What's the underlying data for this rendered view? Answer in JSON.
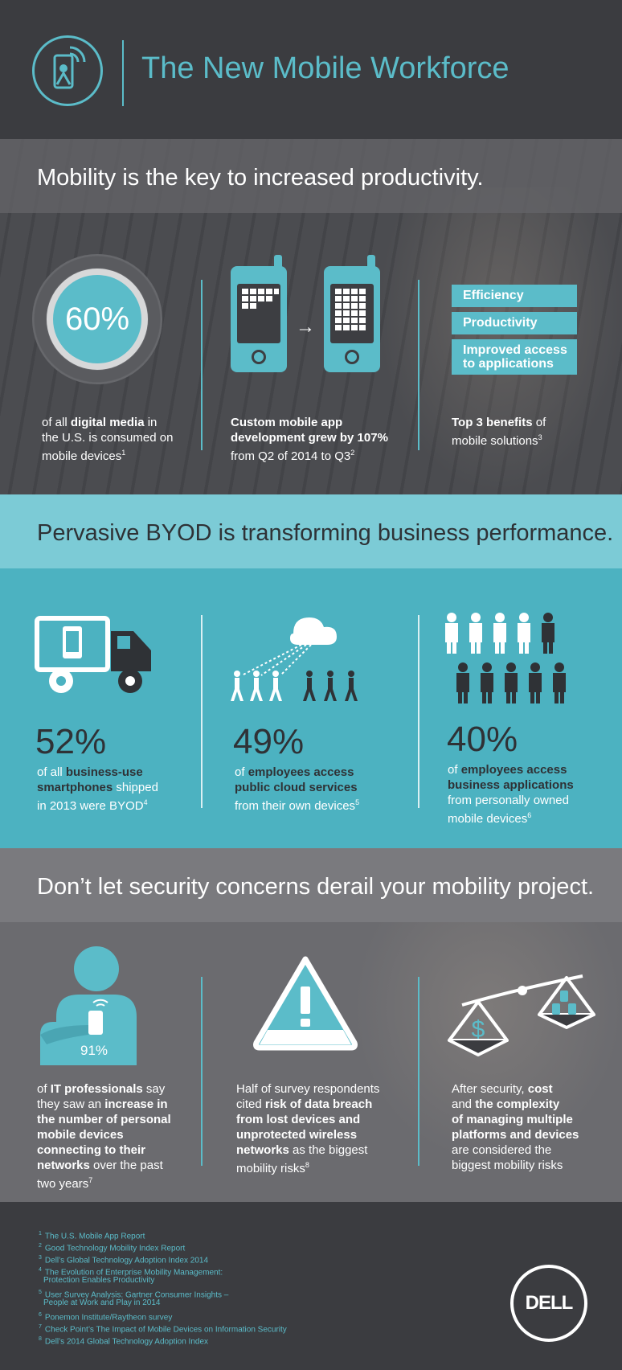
{
  "header": {
    "title": "The New Mobile Workforce"
  },
  "section1": {
    "title": "Mobility is the key to increased productivity.",
    "stat1": {
      "value": "60%",
      "pre": "of all ",
      "bold": "digital media",
      "post1": " in",
      "line2": "the U.S. is consumed on",
      "line3": "mobile devices",
      "sup": "1"
    },
    "stat2": {
      "bold1": "Custom mobile app",
      "bold2": "development grew by 107%",
      "line3": "from Q2 of 2014 to Q3",
      "sup": "2"
    },
    "stat3": {
      "benefits": [
        "Efficiency",
        "Productivity",
        "Improved access",
        "to applications"
      ],
      "bold": "Top 3 benefits",
      "post": " of",
      "line2": "mobile solutions",
      "sup": "3"
    }
  },
  "section2": {
    "title": "Pervasive BYOD is transforming business performance.",
    "stat1": {
      "value": "52%",
      "pre": "of all ",
      "bold1": "business-use",
      "bold2": "smartphones",
      "post2": " shipped",
      "line3": "in 2013 were BYOD",
      "sup": "4"
    },
    "stat2": {
      "value": "49%",
      "pre": "of ",
      "bold1": "employees access",
      "bold2": "public cloud services",
      "line3": "from their own devices",
      "sup": "5"
    },
    "stat3": {
      "value": "40%",
      "pre": "of ",
      "bold1": "employees access",
      "bold2": "business applications",
      "line3": "from personally owned",
      "line4": "mobile devices",
      "sup": "6"
    }
  },
  "section3": {
    "title": "Don’t let security concerns derail your mobility project.",
    "stat1": {
      "icon_value": "91%",
      "pre": "of ",
      "bold1": "IT professionals",
      "post1": " say",
      "line2a": "they saw an ",
      "line2b": "increase in",
      "line3": "the number of personal",
      "line4": "mobile devices",
      "line5": "connecting to their",
      "line6a": "networks",
      "line6b": " over the past",
      "line7": "two years",
      "sup": "7"
    },
    "stat2": {
      "line1": "Half of survey respondents",
      "line2a": "cited ",
      "line2b": "risk of data breach",
      "line3": "from lost devices and",
      "line4": "unprotected wireless",
      "line5a": "networks",
      "line5b": " as the biggest",
      "line6": "mobility risks",
      "sup": "8"
    },
    "stat3": {
      "line1a": "After security, ",
      "line1b": "cost",
      "line2a": "and ",
      "line2b": "the complexity",
      "line3": "of managing multiple",
      "line4": "platforms and devices",
      "line5": "are considered the",
      "line6": "biggest mobility risks"
    }
  },
  "footer": {
    "notes": [
      {
        "n": "1",
        "text": "The U.S. Mobile App Report"
      },
      {
        "n": "2",
        "text": "Good Technology Mobility Index Report"
      },
      {
        "n": "3",
        "text": "Dell’s Global Technology Adoption Index 2014"
      },
      {
        "n": "4",
        "text": "The Evolution of Enterprise Mobility Management:"
      },
      {
        "n": "",
        "text": "Protection Enables Productivity"
      },
      {
        "n": "5",
        "text": "User Survey Analysis: Gartner Consumer Insights –"
      },
      {
        "n": "",
        "text": "People at Work and Play in 2014"
      },
      {
        "n": "6",
        "text": "Ponemon Institute/Raytheon survey"
      },
      {
        "n": "7",
        "text": "Check Point’s The Impact of Mobile Devices on Information Security"
      },
      {
        "n": "8",
        "text": "Dell’s 2014 Global Technology Adoption Index"
      }
    ],
    "logo": "DELL"
  },
  "colors": {
    "teal": "#5bbcc9",
    "dark": "#3b3c40",
    "byod_bg": "#4cb2c1"
  }
}
